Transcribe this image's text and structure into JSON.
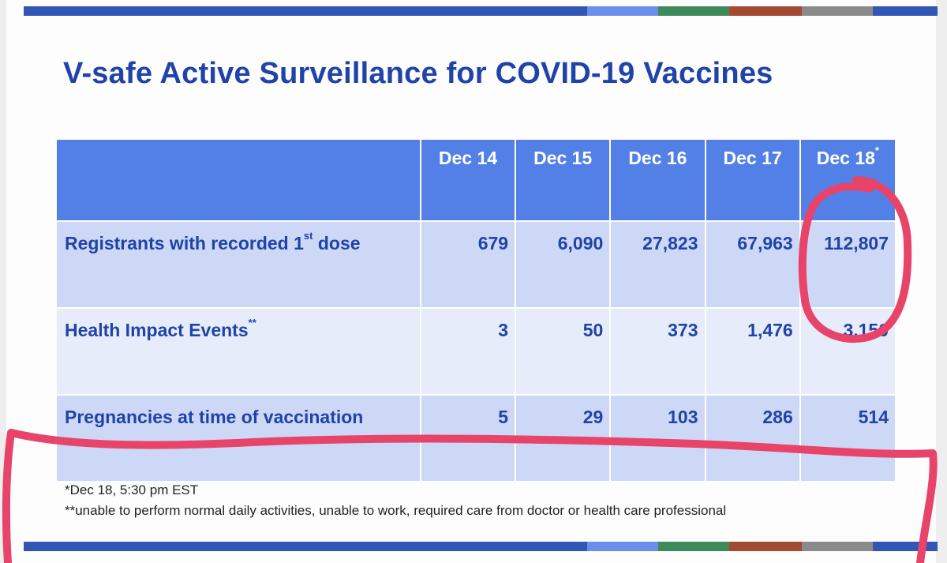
{
  "title": "V-safe Active Surveillance for COVID-19 Vaccines",
  "colors": {
    "title": "#1f43a8",
    "header_bg": "#5380e6",
    "row_dark": "#cdd8f6",
    "row_light": "#e7ecfa",
    "marker": "#e8446a",
    "stripe": [
      "#2f57b3",
      "#6b8fe8",
      "#3f8a5a",
      "#a44a32",
      "#8a8a8a",
      "#2f57b3"
    ]
  },
  "table": {
    "columns": [
      {
        "label": "Dec 14",
        "sup": ""
      },
      {
        "label": "Dec 15",
        "sup": ""
      },
      {
        "label": "Dec 16",
        "sup": ""
      },
      {
        "label": "Dec 17",
        "sup": ""
      },
      {
        "label": "Dec 18",
        "sup": "*"
      }
    ],
    "rows": [
      {
        "label_main": "Registrants with recorded 1",
        "label_sup": "st",
        "label_tail": " dose",
        "values": [
          "679",
          "6,090",
          "27,823",
          "67,963",
          "112,807"
        ]
      },
      {
        "label_main": "Health Impact Events",
        "label_sup": "**",
        "label_tail": "",
        "values": [
          "3",
          "50",
          "373",
          "1,476",
          "3,150"
        ]
      },
      {
        "label_main": "Pregnancies at time of vaccination",
        "label_sup": "",
        "label_tail": "",
        "values": [
          "5",
          "29",
          "103",
          "286",
          "514"
        ]
      }
    ]
  },
  "footnotes": {
    "note1": "*Dec 18, 5:30 pm EST",
    "note2": "**unable to perform normal daily activities, unable to work, required care from doctor or health care professional"
  }
}
